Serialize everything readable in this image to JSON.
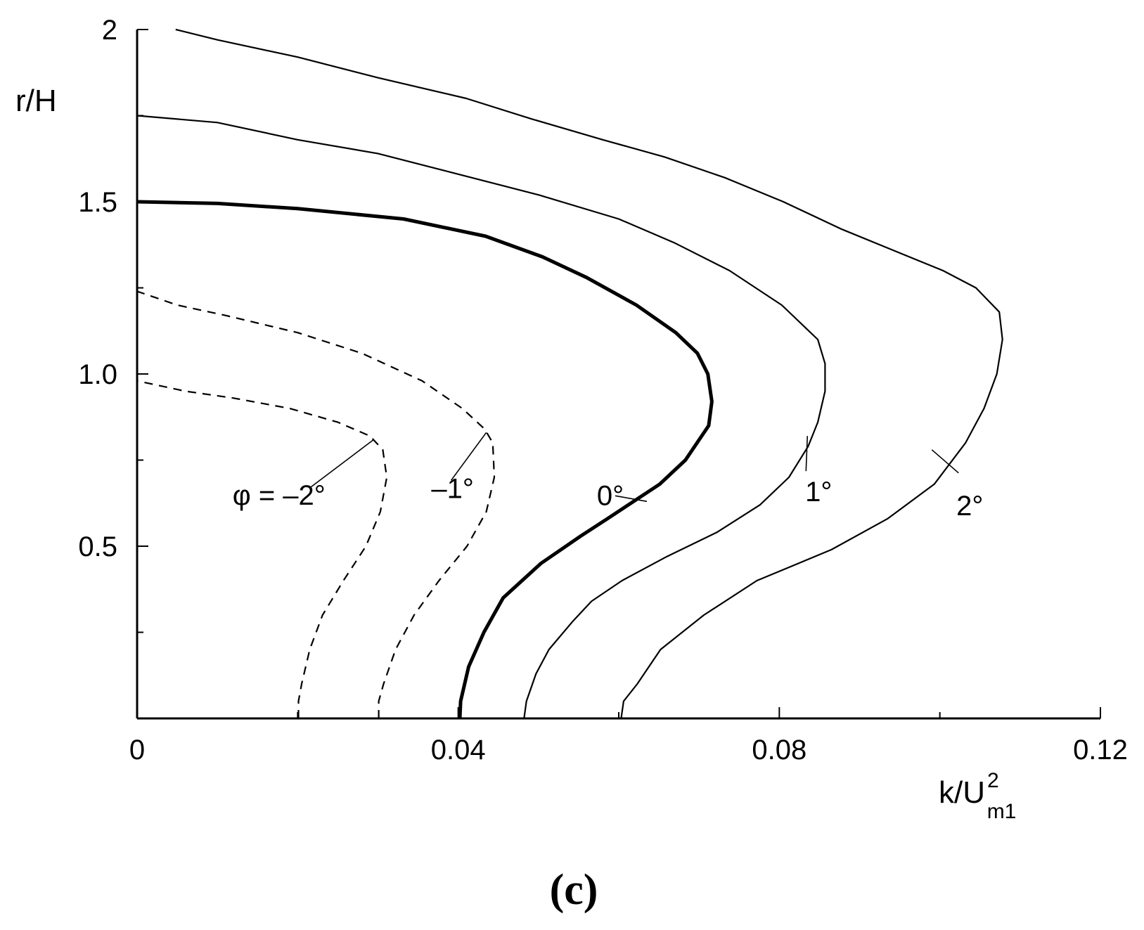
{
  "chart_data": {
    "type": "line",
    "title": "",
    "panel_label": "(c)",
    "xlabel": {
      "main": "k/U",
      "sup": "2",
      "sub": "m1"
    },
    "ylabel": "r/H",
    "xlim": [
      0,
      0.12
    ],
    "ylim": [
      0,
      2
    ],
    "xticks": [
      0,
      0.04,
      0.08,
      0.12
    ],
    "xtick_labels": [
      "0",
      "0.04",
      "0.08",
      "0.12"
    ],
    "xminor_ticks": [
      0.02,
      0.06,
      0.1
    ],
    "yticks": [
      0.5,
      1.0,
      1.5,
      2.0
    ],
    "ytick_labels": [
      "0.5",
      "1.0",
      "1.5",
      "2"
    ],
    "yminor_ticks": [
      0.25,
      0.75,
      1.25,
      1.75
    ],
    "grid": false,
    "series": [
      {
        "name": "φ = –2°",
        "style": "dashed",
        "weight": "thin",
        "label_at": [
          0.0295,
          0.81
        ],
        "points": [
          [
            0.0201,
            0.0
          ],
          [
            0.0201,
            0.05
          ],
          [
            0.0205,
            0.1
          ],
          [
            0.0215,
            0.2
          ],
          [
            0.0231,
            0.3
          ],
          [
            0.0257,
            0.4
          ],
          [
            0.0285,
            0.5
          ],
          [
            0.0303,
            0.6
          ],
          [
            0.0311,
            0.7
          ],
          [
            0.0306,
            0.78
          ],
          [
            0.029,
            0.82
          ],
          [
            0.025,
            0.86
          ],
          [
            0.019,
            0.9
          ],
          [
            0.012,
            0.93
          ],
          [
            0.006,
            0.95
          ],
          [
            0.0,
            0.98
          ]
        ]
      },
      {
        "name": "–1°",
        "style": "dashed",
        "weight": "thin",
        "label_at": [
          0.0435,
          0.83
        ],
        "points": [
          [
            0.0301,
            0.0
          ],
          [
            0.0301,
            0.05
          ],
          [
            0.0307,
            0.1
          ],
          [
            0.0322,
            0.2
          ],
          [
            0.0345,
            0.3
          ],
          [
            0.0376,
            0.4
          ],
          [
            0.0411,
            0.5
          ],
          [
            0.0435,
            0.6
          ],
          [
            0.0445,
            0.7
          ],
          [
            0.0443,
            0.8
          ],
          [
            0.0433,
            0.84
          ],
          [
            0.0405,
            0.9
          ],
          [
            0.0355,
            0.98
          ],
          [
            0.028,
            1.06
          ],
          [
            0.02,
            1.12
          ],
          [
            0.011,
            1.17
          ],
          [
            0.005,
            1.2
          ],
          [
            0.0,
            1.24
          ]
        ]
      },
      {
        "name": "0°",
        "style": "solid",
        "weight": "thick",
        "label_at": [
          0.0635,
          0.63
        ],
        "points": [
          [
            0.0402,
            0.0
          ],
          [
            0.0403,
            0.05
          ],
          [
            0.0413,
            0.15
          ],
          [
            0.0432,
            0.25
          ],
          [
            0.0456,
            0.35
          ],
          [
            0.0503,
            0.45
          ],
          [
            0.0553,
            0.53
          ],
          [
            0.0586,
            0.58
          ],
          [
            0.0612,
            0.62
          ],
          [
            0.0651,
            0.68
          ],
          [
            0.0683,
            0.75
          ],
          [
            0.0712,
            0.85
          ],
          [
            0.0716,
            0.92
          ],
          [
            0.0711,
            1.0
          ],
          [
            0.0698,
            1.06
          ],
          [
            0.0671,
            1.12
          ],
          [
            0.0622,
            1.2
          ],
          [
            0.056,
            1.28
          ],
          [
            0.0505,
            1.34
          ],
          [
            0.0434,
            1.4
          ],
          [
            0.0332,
            1.45
          ],
          [
            0.02,
            1.48
          ],
          [
            0.01,
            1.495
          ],
          [
            0.0,
            1.5
          ]
        ]
      },
      {
        "name": "1°",
        "style": "solid",
        "weight": "thin",
        "label_at": [
          0.0835,
          0.82
        ],
        "points": [
          [
            0.0482,
            0.0
          ],
          [
            0.0485,
            0.05
          ],
          [
            0.0497,
            0.13
          ],
          [
            0.0513,
            0.2
          ],
          [
            0.0542,
            0.28
          ],
          [
            0.0566,
            0.34
          ],
          [
            0.0604,
            0.4
          ],
          [
            0.066,
            0.47
          ],
          [
            0.0722,
            0.54
          ],
          [
            0.0776,
            0.62
          ],
          [
            0.0812,
            0.7
          ],
          [
            0.0836,
            0.79
          ],
          [
            0.0848,
            0.86
          ],
          [
            0.0857,
            0.95
          ],
          [
            0.0857,
            1.03
          ],
          [
            0.0848,
            1.1
          ],
          [
            0.0803,
            1.2
          ],
          [
            0.0738,
            1.3
          ],
          [
            0.067,
            1.38
          ],
          [
            0.06,
            1.45
          ],
          [
            0.05,
            1.52
          ],
          [
            0.04,
            1.58
          ],
          [
            0.03,
            1.64
          ],
          [
            0.02,
            1.68
          ],
          [
            0.01,
            1.73
          ],
          [
            0.0,
            1.75
          ]
        ]
      },
      {
        "name": "2°",
        "style": "solid",
        "weight": "thin",
        "label_at": [
          0.099,
          0.78
        ],
        "points": [
          [
            0.0603,
            0.0
          ],
          [
            0.0606,
            0.05
          ],
          [
            0.0623,
            0.1
          ],
          [
            0.0652,
            0.2
          ],
          [
            0.0706,
            0.3
          ],
          [
            0.0772,
            0.4
          ],
          [
            0.0865,
            0.49
          ],
          [
            0.0935,
            0.58
          ],
          [
            0.0993,
            0.68
          ],
          [
            0.1032,
            0.8
          ],
          [
            0.1055,
            0.9
          ],
          [
            0.1071,
            1.0
          ],
          [
            0.1078,
            1.1
          ],
          [
            0.1074,
            1.18
          ],
          [
            0.1045,
            1.25
          ],
          [
            0.1004,
            1.3
          ],
          [
            0.0941,
            1.36
          ],
          [
            0.0878,
            1.42
          ],
          [
            0.0805,
            1.5
          ],
          [
            0.0732,
            1.57
          ],
          [
            0.0657,
            1.63
          ],
          [
            0.058,
            1.68
          ],
          [
            0.0492,
            1.74
          ],
          [
            0.041,
            1.8
          ],
          [
            0.03,
            1.86
          ],
          [
            0.02,
            1.92
          ],
          [
            0.01,
            1.97
          ],
          [
            0.0048,
            2.0
          ]
        ]
      }
    ]
  }
}
